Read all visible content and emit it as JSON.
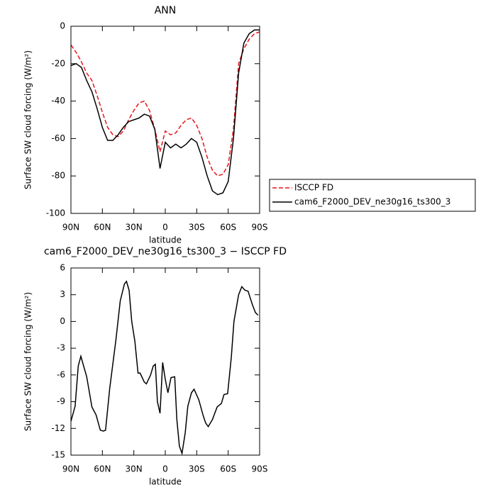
{
  "chart_data": [
    {
      "type": "line",
      "title": "ANN",
      "xlabel": "latitude",
      "ylabel": "Surface SW cloud forcing (W/m²)",
      "x": [
        90,
        85,
        80,
        75,
        70,
        65,
        60,
        55,
        50,
        45,
        40,
        35,
        30,
        25,
        20,
        15,
        10,
        5,
        0,
        -5,
        -10,
        -15,
        -20,
        -25,
        -30,
        -35,
        -40,
        -45,
        -50,
        -55,
        -60,
        -65,
        -70,
        -75,
        -80,
        -85,
        -90
      ],
      "series": [
        {
          "name": "ISCCP FD",
          "color": "#e8141b",
          "dash": true,
          "values": [
            -10,
            -14,
            -19,
            -25,
            -29,
            -37,
            -46,
            -54,
            -58,
            -59,
            -56,
            -50,
            -45,
            -41,
            -40,
            -45,
            -55,
            -67,
            -56,
            -58,
            -57,
            -53,
            -50,
            -49,
            -53,
            -60,
            -70,
            -77,
            -80,
            -79,
            -74,
            -55,
            -20,
            -12,
            -7,
            -4,
            -3
          ]
        },
        {
          "name": "cam6_F2000_DEV_ne30g16_ts300_3",
          "color": "#000000",
          "dash": false,
          "values": [
            -21,
            -20,
            -22,
            -29,
            -35,
            -44,
            -54,
            -61,
            -61,
            -58,
            -54,
            -51,
            -50,
            -49,
            -47,
            -48,
            -55,
            -76,
            -62,
            -65,
            -63,
            -65,
            -63,
            -60,
            -62,
            -70,
            -80,
            -88,
            -90,
            -89,
            -83,
            -60,
            -25,
            -9,
            -4,
            -2,
            -2
          ]
        }
      ],
      "xlim": [
        90,
        -90
      ],
      "xticks": [
        {
          "value": 90,
          "label": "90N"
        },
        {
          "value": 60,
          "label": "60N"
        },
        {
          "value": 30,
          "label": "30N"
        },
        0,
        {
          "value": -30,
          "label": "30S"
        },
        {
          "value": -60,
          "label": "60S"
        },
        {
          "value": -90,
          "label": "90S"
        }
      ],
      "ylim": [
        -100,
        0
      ],
      "yticks": [
        -100,
        -80,
        -60,
        -40,
        -20,
        0
      ],
      "legend": "right"
    },
    {
      "type": "line",
      "title": "cam6_F2000_DEV_ne30g16_ts300_3 − ISCCP FD",
      "xlabel": "latitude",
      "ylabel": "Surface SW cloud forcing (W/m²)",
      "x": [
        90,
        86,
        83,
        80.5,
        75,
        70,
        66,
        62,
        59,
        57,
        53,
        47,
        43,
        39,
        37,
        34.5,
        32,
        29,
        26,
        24,
        20,
        18,
        14,
        11.5,
        9.5,
        7.5,
        5,
        2.5,
        0,
        -2.5,
        -5.5,
        -9,
        -11,
        -13.5,
        -16,
        -19,
        -21.5,
        -25,
        -27.5,
        -32,
        -36,
        -38.5,
        -41,
        -45,
        -49.5,
        -53.5,
        -56,
        -59.5,
        -63,
        -65.5,
        -70,
        -73,
        -76,
        -79,
        -83,
        -86,
        -88.5
      ],
      "series": [
        {
          "color": "#000000",
          "dash": false,
          "values": [
            -11.2,
            -9.5,
            -5,
            -3.9,
            -6.2,
            -9.6,
            -10.5,
            -12.2,
            -12.3,
            -12.2,
            -7.5,
            -2,
            2.3,
            4.2,
            4.5,
            3.5,
            0,
            -2.2,
            -5.8,
            -5.8,
            -6.8,
            -7,
            -6,
            -5,
            -4.8,
            -9,
            -10.3,
            -4.6,
            -6.5,
            -8,
            -6.3,
            -6.2,
            -11,
            -14,
            -14.8,
            -12.5,
            -9.5,
            -8,
            -7.6,
            -8.8,
            -10.5,
            -11.4,
            -11.8,
            -11,
            -9.6,
            -9.2,
            -8.2,
            -8.1,
            -4,
            0,
            3,
            3.9,
            3.5,
            3.4,
            1.9,
            1,
            0.7
          ]
        }
      ],
      "xlim": [
        90,
        -90
      ],
      "xticks": [
        {
          "value": 90,
          "label": "90N"
        },
        {
          "value": 60,
          "label": "60N"
        },
        {
          "value": 30,
          "label": "30N"
        },
        0,
        {
          "value": -30,
          "label": "30S"
        },
        {
          "value": -60,
          "label": "60S"
        },
        {
          "value": -90,
          "label": "90S"
        }
      ],
      "ylim": [
        -15,
        6
      ],
      "yticks": [
        -15,
        -12,
        -9,
        -6,
        -3,
        0,
        3,
        6
      ]
    }
  ]
}
